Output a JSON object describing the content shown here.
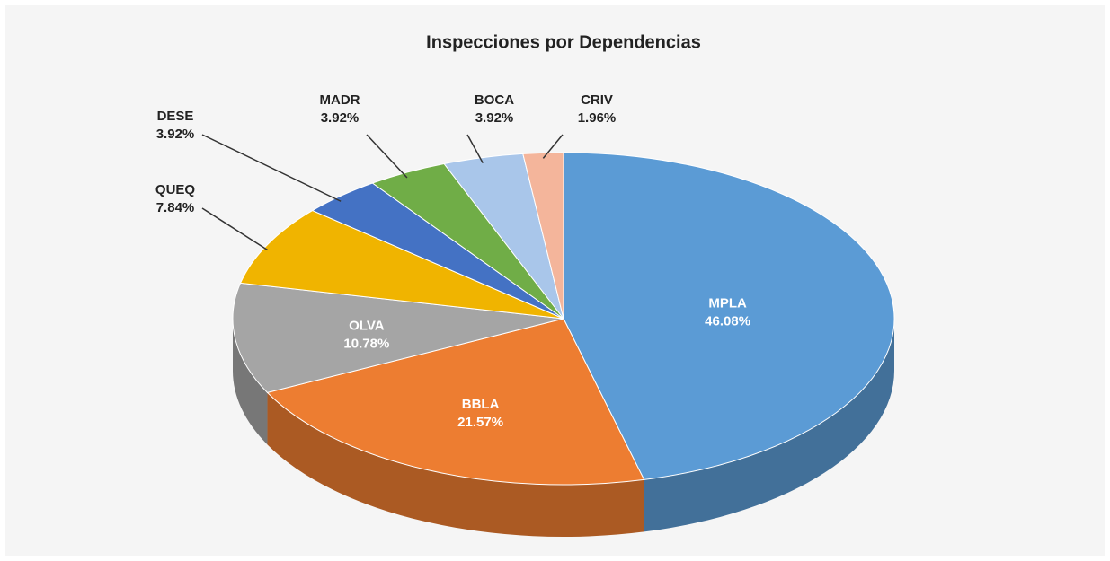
{
  "chart_data": {
    "type": "pie",
    "title": "Inspecciones por Dependencias",
    "categories": [
      "MPLA",
      "BBLA",
      "OLVA",
      "QUEQ",
      "DESE",
      "MADR",
      "BOCA",
      "CRIV"
    ],
    "values": [
      46.08,
      21.57,
      10.78,
      7.84,
      3.92,
      3.92,
      3.92,
      1.96
    ],
    "value_labels": [
      "46.08%",
      "21.57%",
      "10.78%",
      "7.84%",
      "3.92%",
      "3.92%",
      "3.92%",
      "1.96%"
    ],
    "colors": [
      "#5b9bd5",
      "#ed7d31",
      "#a5a5a5",
      "#f0b400",
      "#4472c4",
      "#70ad47",
      "#a9c6ea",
      "#f4b59b"
    ]
  }
}
